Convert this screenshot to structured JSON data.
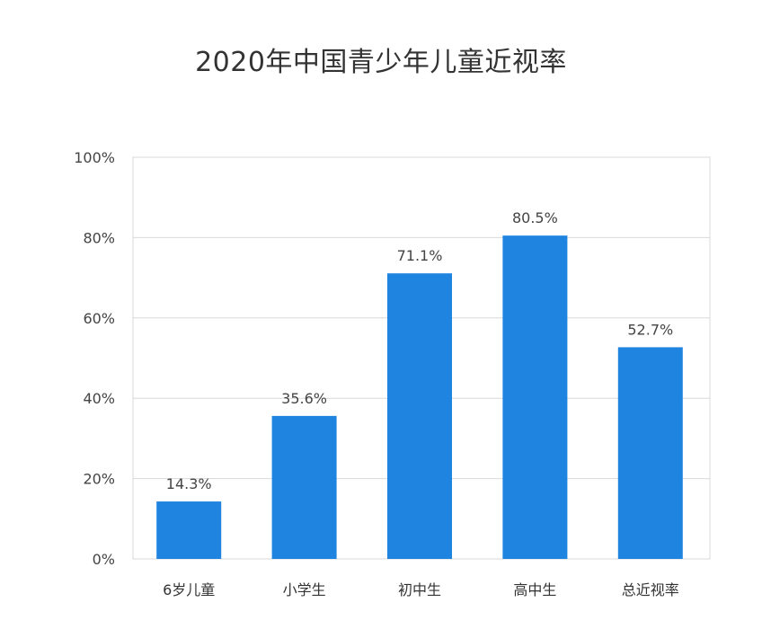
{
  "chart_data": {
    "type": "bar",
    "title": "2020年中国青少年儿童近视率",
    "categories": [
      "6岁儿童",
      "小学生",
      "初中生",
      "高中生",
      "总近视率"
    ],
    "values": [
      14.3,
      35.6,
      71.1,
      80.5,
      52.7
    ],
    "value_labels": [
      "14.3%",
      "35.6%",
      "71.1%",
      "80.5%",
      "52.7%"
    ],
    "ylim": [
      0,
      100
    ],
    "yticks": [
      0,
      20,
      40,
      60,
      80,
      100
    ],
    "ytick_labels": [
      "0%",
      "20%",
      "40%",
      "60%",
      "80%",
      "100%"
    ],
    "xlabel": "",
    "ylabel": "",
    "grid": true,
    "legend": "none",
    "bar_color": "#1f83e0",
    "grid_color": "#d9d9d9"
  }
}
